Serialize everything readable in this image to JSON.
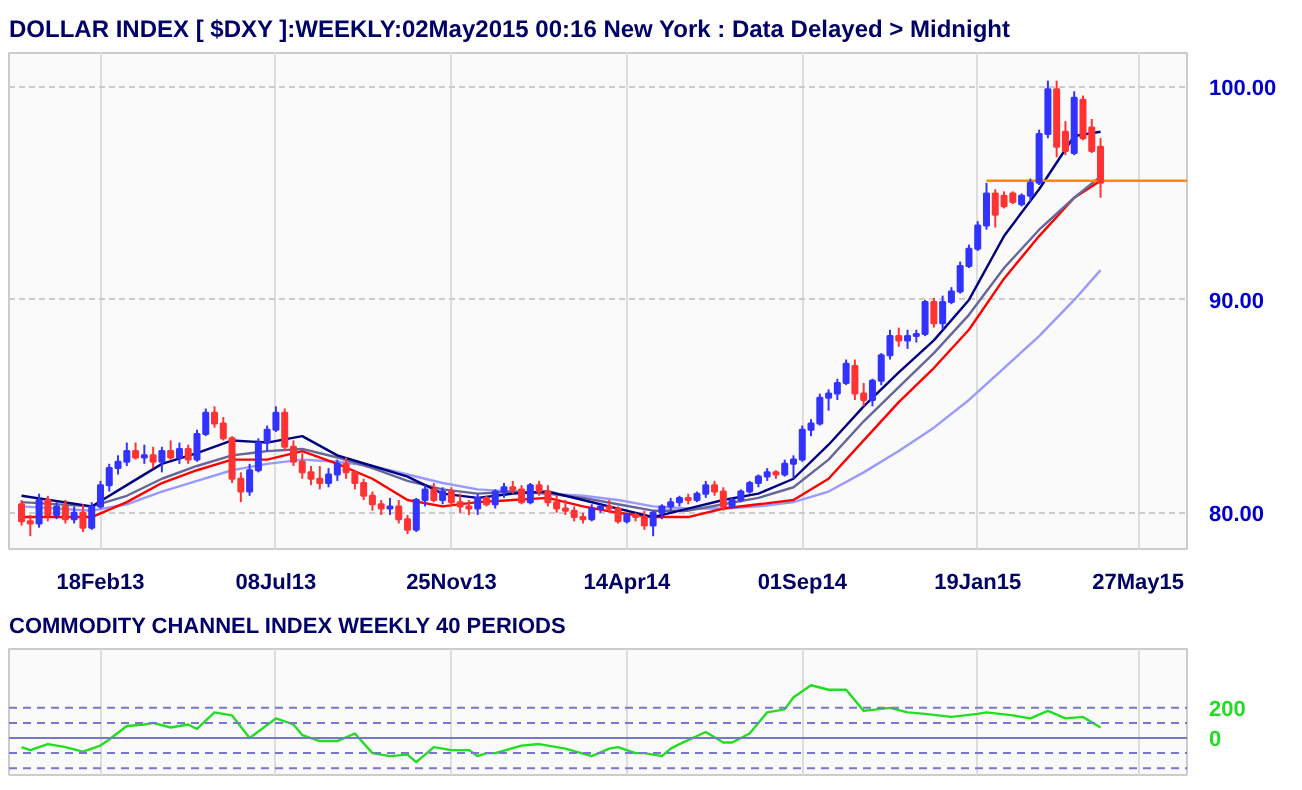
{
  "chart_data": [
    {
      "type": "candlestick",
      "title": "DOLLAR INDEX [ $DXY ]:WEEKLY:02May2015 00:16 New York : Data Delayed > Midnight",
      "x": [
        "2012-12-17",
        "2012-12-24",
        "2012-12-31",
        "2013-01-07",
        "2013-01-14",
        "2013-01-21",
        "2013-01-28",
        "2013-02-04",
        "2013-02-11",
        "2013-02-18",
        "2013-02-25",
        "2013-03-04",
        "2013-03-11",
        "2013-03-18",
        "2013-03-25",
        "2013-04-01",
        "2013-04-08",
        "2013-04-15",
        "2013-04-22",
        "2013-04-29",
        "2013-05-06",
        "2013-05-13",
        "2013-05-20",
        "2013-05-27",
        "2013-06-03",
        "2013-06-10",
        "2013-06-17",
        "2013-06-24",
        "2013-07-01",
        "2013-07-08",
        "2013-07-15",
        "2013-07-22",
        "2013-07-29",
        "2013-08-05",
        "2013-08-12",
        "2013-08-19",
        "2013-08-26",
        "2013-09-02",
        "2013-09-09",
        "2013-09-16",
        "2013-09-23",
        "2013-09-30",
        "2013-10-07",
        "2013-10-14",
        "2013-10-21",
        "2013-10-28",
        "2013-11-04",
        "2013-11-11",
        "2013-11-18",
        "2013-11-25",
        "2013-12-02",
        "2013-12-09",
        "2013-12-16",
        "2013-12-23",
        "2013-12-30",
        "2014-01-06",
        "2014-01-13",
        "2014-01-20",
        "2014-01-27",
        "2014-02-03",
        "2014-02-10",
        "2014-02-17",
        "2014-02-24",
        "2014-03-03",
        "2014-03-10",
        "2014-03-17",
        "2014-03-24",
        "2014-03-31",
        "2014-04-07",
        "2014-04-14",
        "2014-04-21",
        "2014-04-28",
        "2014-05-05",
        "2014-05-12",
        "2014-05-19",
        "2014-05-26",
        "2014-06-02",
        "2014-06-09",
        "2014-06-16",
        "2014-06-23",
        "2014-06-30",
        "2014-07-07",
        "2014-07-14",
        "2014-07-21",
        "2014-07-28",
        "2014-08-04",
        "2014-08-11",
        "2014-08-18",
        "2014-08-25",
        "2014-09-01",
        "2014-09-08",
        "2014-09-15",
        "2014-09-22",
        "2014-09-29",
        "2014-10-06",
        "2014-10-13",
        "2014-10-20",
        "2014-10-27",
        "2014-11-03",
        "2014-11-10",
        "2014-11-17",
        "2014-11-24",
        "2014-12-01",
        "2014-12-08",
        "2014-12-15",
        "2014-12-22",
        "2014-12-29",
        "2015-01-05",
        "2015-01-12",
        "2015-01-19",
        "2015-01-26",
        "2015-02-02",
        "2015-02-09",
        "2015-02-16",
        "2015-02-23",
        "2015-03-02",
        "2015-03-09",
        "2015-03-16",
        "2015-03-23",
        "2015-03-30",
        "2015-04-06",
        "2015-04-13",
        "2015-04-20",
        "2015-04-27"
      ],
      "ohlc": [
        [
          80.4,
          80.6,
          79.4,
          79.6
        ],
        [
          79.6,
          79.9,
          78.9,
          79.5
        ],
        [
          79.5,
          80.9,
          79.3,
          80.6
        ],
        [
          80.6,
          80.8,
          79.6,
          79.9
        ],
        [
          79.9,
          80.5,
          79.7,
          80.3
        ],
        [
          80.3,
          80.6,
          79.5,
          79.7
        ],
        [
          79.7,
          80.3,
          79.5,
          80.0
        ],
        [
          80.0,
          80.4,
          79.1,
          79.3
        ],
        [
          79.3,
          80.5,
          79.2,
          80.3
        ],
        [
          80.3,
          81.5,
          80.2,
          81.3
        ],
        [
          81.3,
          82.3,
          81.0,
          82.1
        ],
        [
          82.1,
          82.7,
          81.8,
          82.4
        ],
        [
          82.4,
          83.3,
          82.2,
          82.9
        ],
        [
          82.9,
          83.3,
          82.5,
          82.6
        ],
        [
          82.6,
          83.2,
          82.3,
          82.7
        ],
        [
          82.7,
          83.1,
          82.1,
          82.4
        ],
        [
          82.4,
          83.1,
          81.9,
          82.9
        ],
        [
          82.9,
          83.4,
          82.5,
          82.6
        ],
        [
          82.6,
          83.3,
          82.3,
          83.0
        ],
        [
          83.0,
          83.2,
          82.3,
          82.5
        ],
        [
          82.5,
          83.9,
          82.4,
          83.7
        ],
        [
          83.7,
          84.9,
          83.6,
          84.7
        ],
        [
          84.7,
          85.0,
          84.0,
          84.2
        ],
        [
          84.2,
          84.5,
          83.4,
          83.5
        ],
        [
          83.5,
          83.6,
          81.4,
          81.6
        ],
        [
          81.6,
          81.9,
          80.5,
          81.0
        ],
        [
          81.0,
          82.3,
          80.8,
          82.0
        ],
        [
          82.0,
          83.5,
          81.9,
          83.3
        ],
        [
          83.3,
          84.1,
          82.9,
          83.9
        ],
        [
          83.9,
          85.0,
          83.8,
          84.7
        ],
        [
          84.7,
          84.9,
          82.9,
          83.1
        ],
        [
          83.1,
          83.4,
          82.2,
          82.4
        ],
        [
          82.4,
          82.8,
          81.6,
          81.9
        ],
        [
          81.9,
          82.2,
          81.3,
          81.6
        ],
        [
          81.6,
          82.2,
          81.1,
          81.4
        ],
        [
          81.4,
          82.1,
          81.2,
          81.8
        ],
        [
          81.8,
          82.5,
          81.5,
          82.3
        ],
        [
          82.3,
          82.6,
          81.6,
          81.9
        ],
        [
          81.9,
          82.0,
          81.1,
          81.4
        ],
        [
          81.4,
          81.6,
          80.6,
          80.8
        ],
        [
          80.8,
          81.0,
          80.1,
          80.4
        ],
        [
          80.4,
          80.6,
          79.9,
          80.2
        ],
        [
          80.2,
          80.7,
          79.9,
          80.3
        ],
        [
          80.3,
          80.6,
          79.5,
          79.7
        ],
        [
          79.7,
          79.9,
          79.0,
          79.2
        ],
        [
          79.2,
          80.7,
          79.1,
          80.6
        ],
        [
          80.6,
          81.3,
          80.3,
          81.1
        ],
        [
          81.1,
          81.4,
          80.5,
          80.6
        ],
        [
          80.6,
          81.2,
          80.4,
          81.0
        ],
        [
          81.0,
          81.2,
          80.3,
          80.5
        ],
        [
          80.5,
          80.9,
          80.0,
          80.3
        ],
        [
          80.3,
          80.6,
          79.9,
          80.2
        ],
        [
          80.2,
          80.9,
          79.9,
          80.7
        ],
        [
          80.7,
          80.8,
          80.3,
          80.4
        ],
        [
          80.4,
          81.1,
          80.2,
          81.0
        ],
        [
          81.0,
          81.4,
          80.7,
          81.2
        ],
        [
          81.2,
          81.5,
          80.9,
          81.1
        ],
        [
          81.1,
          81.3,
          80.4,
          80.5
        ],
        [
          80.5,
          81.4,
          80.4,
          81.3
        ],
        [
          81.3,
          81.5,
          80.8,
          81.0
        ],
        [
          81.0,
          81.3,
          80.3,
          80.5
        ],
        [
          80.5,
          80.8,
          80.0,
          80.2
        ],
        [
          80.2,
          80.6,
          79.9,
          80.1
        ],
        [
          80.1,
          80.3,
          79.6,
          79.8
        ],
        [
          79.8,
          80.0,
          79.5,
          79.7
        ],
        [
          79.7,
          80.4,
          79.6,
          80.2
        ],
        [
          80.2,
          80.4,
          80.0,
          80.3
        ],
        [
          80.3,
          80.6,
          80.0,
          80.2
        ],
        [
          80.2,
          80.3,
          79.5,
          79.6
        ],
        [
          79.6,
          80.0,
          79.5,
          79.9
        ],
        [
          79.9,
          80.0,
          79.6,
          79.8
        ],
        [
          79.8,
          80.1,
          79.2,
          79.4
        ],
        [
          79.4,
          80.1,
          78.9,
          80.0
        ],
        [
          80.0,
          80.4,
          79.7,
          80.3
        ],
        [
          80.3,
          80.7,
          80.1,
          80.5
        ],
        [
          80.5,
          80.8,
          80.3,
          80.7
        ],
        [
          80.7,
          80.9,
          80.4,
          80.6
        ],
        [
          80.6,
          81.0,
          80.5,
          80.9
        ],
        [
          80.9,
          81.5,
          80.7,
          81.3
        ],
        [
          81.3,
          81.5,
          80.8,
          81.0
        ],
        [
          81.0,
          81.2,
          80.1,
          80.3
        ],
        [
          80.3,
          80.7,
          80.2,
          80.6
        ],
        [
          80.6,
          81.1,
          80.5,
          81.0
        ],
        [
          81.0,
          81.5,
          80.9,
          81.4
        ],
        [
          81.4,
          81.8,
          81.2,
          81.7
        ],
        [
          81.7,
          82.1,
          81.5,
          81.9
        ],
        [
          81.9,
          82.0,
          81.6,
          81.8
        ],
        [
          81.8,
          82.5,
          81.7,
          82.3
        ],
        [
          82.3,
          82.7,
          81.6,
          82.5
        ],
        [
          82.5,
          84.1,
          82.4,
          83.9
        ],
        [
          83.9,
          84.4,
          83.6,
          84.2
        ],
        [
          84.2,
          85.6,
          84.1,
          85.4
        ],
        [
          85.4,
          85.8,
          84.8,
          85.6
        ],
        [
          85.6,
          86.3,
          85.3,
          86.1
        ],
        [
          86.1,
          87.2,
          86.0,
          87.0
        ],
        [
          86.9,
          87.2,
          85.3,
          85.6
        ],
        [
          85.6,
          86.1,
          85.0,
          85.3
        ],
        [
          85.3,
          86.3,
          85.0,
          86.2
        ],
        [
          86.2,
          87.5,
          86.0,
          87.4
        ],
        [
          87.4,
          88.6,
          87.2,
          88.3
        ],
        [
          88.3,
          88.7,
          87.8,
          88.1
        ],
        [
          88.1,
          88.6,
          87.7,
          88.3
        ],
        [
          88.3,
          88.6,
          88.0,
          88.4
        ],
        [
          88.4,
          90.0,
          88.3,
          89.9
        ],
        [
          89.9,
          90.1,
          88.7,
          88.9
        ],
        [
          88.9,
          90.2,
          88.6,
          89.9
        ],
        [
          89.9,
          90.6,
          89.8,
          90.4
        ],
        [
          90.4,
          91.8,
          90.3,
          91.6
        ],
        [
          91.6,
          92.6,
          91.5,
          92.4
        ],
        [
          92.4,
          93.7,
          92.3,
          93.5
        ],
        [
          93.5,
          95.5,
          93.3,
          95.0
        ],
        [
          95.0,
          95.2,
          93.4,
          94.0
        ],
        [
          94.9,
          95.1,
          94.3,
          94.4
        ],
        [
          95.0,
          95.1,
          94.5,
          94.6
        ],
        [
          94.5,
          95.0,
          94.4,
          94.9
        ],
        [
          94.9,
          95.7,
          94.6,
          95.5
        ],
        [
          95.5,
          98.0,
          95.4,
          97.8
        ],
        [
          97.8,
          100.3,
          97.6,
          99.9
        ],
        [
          99.9,
          100.3,
          96.7,
          97.2
        ],
        [
          97.9,
          98.4,
          96.8,
          97.0
        ],
        [
          96.9,
          99.8,
          96.8,
          99.5
        ],
        [
          99.4,
          99.6,
          97.5,
          97.6
        ],
        [
          98.1,
          98.5,
          96.9,
          97.0
        ],
        [
          97.2,
          97.6,
          94.8,
          95.5
        ]
      ],
      "colors": [
        "#ff3333",
        "#ff3333",
        "#3333ff",
        "#ff3333",
        "#3333ff",
        "#ff3333",
        "#3333ff",
        "#ff3333",
        "#3333ff",
        "#3333ff",
        "#3333ff",
        "#3333ff",
        "#3333ff",
        "#ff3333",
        "#3333ff",
        "#ff3333",
        "#3333ff",
        "#ff3333",
        "#3333ff",
        "#ff3333",
        "#3333ff",
        "#3333ff",
        "#ff3333",
        "#ff3333",
        "#ff3333",
        "#ff3333",
        "#3333ff",
        "#3333ff",
        "#3333ff",
        "#3333ff",
        "#ff3333",
        "#ff3333",
        "#ff3333",
        "#ff3333",
        "#ff3333",
        "#3333ff",
        "#3333ff",
        "#ff3333",
        "#ff3333",
        "#ff3333",
        "#ff3333",
        "#ff3333",
        "#3333ff",
        "#ff3333",
        "#ff3333",
        "#3333ff",
        "#3333ff",
        "#ff3333",
        "#3333ff",
        "#ff3333",
        "#ff3333",
        "#ff3333",
        "#3333ff",
        "#ff3333",
        "#3333ff",
        "#3333ff",
        "#ff3333",
        "#ff3333",
        "#3333ff",
        "#ff3333",
        "#ff3333",
        "#ff3333",
        "#ff3333",
        "#ff3333",
        "#ff3333",
        "#3333ff",
        "#3333ff",
        "#ff3333",
        "#ff3333",
        "#3333ff",
        "#ff3333",
        "#ff3333",
        "#3333ff",
        "#3333ff",
        "#3333ff",
        "#3333ff",
        "#ff3333",
        "#3333ff",
        "#3333ff",
        "#ff3333",
        "#ff3333",
        "#3333ff",
        "#3333ff",
        "#3333ff",
        "#3333ff",
        "#3333ff",
        "#ff3333",
        "#3333ff",
        "#3333ff",
        "#3333ff",
        "#3333ff",
        "#3333ff",
        "#3333ff",
        "#3333ff",
        "#3333ff",
        "#ff3333",
        "#ff3333",
        "#3333ff",
        "#3333ff",
        "#3333ff",
        "#ff3333",
        "#3333ff",
        "#3333ff",
        "#3333ff",
        "#ff3333",
        "#3333ff",
        "#3333ff",
        "#3333ff",
        "#3333ff",
        "#3333ff",
        "#3333ff",
        "#ff3333",
        "#ff3333",
        "#ff3333",
        "#3333ff",
        "#3333ff",
        "#3333ff",
        "#3333ff",
        "#ff3333",
        "#ff3333",
        "#3333ff",
        "#ff3333",
        "#ff3333",
        "#ff3333"
      ],
      "series": [
        {
          "type": "line",
          "color": "#9999ff",
          "x": [
            "2012-12-17",
            "2013-02-11",
            "2013-03-11",
            "2013-04-08",
            "2013-05-06",
            "2013-06-03",
            "2013-07-01",
            "2013-07-29",
            "2013-08-26",
            "2013-09-23",
            "2013-10-21",
            "2013-11-18",
            "2013-12-16",
            "2014-01-13",
            "2014-02-10",
            "2014-03-10",
            "2014-04-07",
            "2014-05-05",
            "2014-06-02",
            "2014-06-30",
            "2014-07-28",
            "2014-08-25",
            "2014-09-22",
            "2014-10-20",
            "2014-11-17",
            "2014-12-15",
            "2015-01-12",
            "2015-02-09",
            "2015-03-09",
            "2015-04-06",
            "2015-04-27"
          ],
          "values": [
            80.3,
            80.1,
            80.4,
            81.0,
            81.5,
            82.0,
            82.3,
            82.5,
            82.4,
            82.2,
            81.8,
            81.4,
            81.1,
            81.0,
            80.9,
            80.8,
            80.6,
            80.3,
            80.2,
            80.2,
            80.3,
            80.5,
            81.0,
            81.9,
            82.9,
            84.0,
            85.3,
            86.8,
            88.3,
            90.0,
            91.4
          ]
        },
        {
          "type": "line",
          "color": "#ff0000",
          "x": [
            "2012-12-17",
            "2013-02-11",
            "2013-03-11",
            "2013-04-08",
            "2013-05-06",
            "2013-06-03",
            "2013-07-01",
            "2013-07-29",
            "2013-08-26",
            "2013-09-23",
            "2013-10-21",
            "2013-11-18",
            "2013-12-16",
            "2014-01-13",
            "2014-02-10",
            "2014-03-10",
            "2014-04-07",
            "2014-05-05",
            "2014-06-02",
            "2014-06-30",
            "2014-07-28",
            "2014-08-25",
            "2014-09-22",
            "2014-10-20",
            "2014-11-17",
            "2014-12-15",
            "2015-01-12",
            "2015-02-09",
            "2015-03-09",
            "2015-04-06",
            "2015-04-27"
          ],
          "values": [
            79.8,
            79.8,
            80.5,
            81.4,
            82.0,
            82.5,
            82.5,
            82.9,
            82.3,
            81.6,
            80.6,
            80.3,
            80.5,
            80.6,
            80.7,
            80.3,
            80.0,
            79.8,
            79.8,
            80.2,
            80.4,
            80.6,
            81.6,
            83.4,
            85.2,
            86.8,
            88.6,
            91.0,
            93.0,
            94.8,
            95.6
          ]
        },
        {
          "type": "line",
          "color": "#666699",
          "x": [
            "2012-12-17",
            "2013-02-11",
            "2013-03-11",
            "2013-04-08",
            "2013-05-06",
            "2013-06-03",
            "2013-07-01",
            "2013-07-29",
            "2013-08-26",
            "2013-09-23",
            "2013-10-21",
            "2013-11-18",
            "2013-12-16",
            "2014-01-13",
            "2014-02-10",
            "2014-03-10",
            "2014-04-07",
            "2014-05-05",
            "2014-06-02",
            "2014-06-30",
            "2014-07-28",
            "2014-08-25",
            "2014-09-22",
            "2014-10-20",
            "2014-11-17",
            "2014-12-15",
            "2015-01-12",
            "2015-02-09",
            "2015-03-09",
            "2015-04-06",
            "2015-04-27"
          ],
          "values": [
            80.5,
            80.3,
            80.8,
            81.6,
            82.2,
            82.7,
            82.9,
            83.0,
            82.6,
            82.1,
            81.5,
            81.1,
            80.9,
            81.0,
            80.9,
            80.7,
            80.4,
            80.1,
            80.1,
            80.4,
            80.7,
            81.2,
            82.5,
            84.3,
            85.9,
            87.5,
            89.3,
            91.5,
            93.3,
            94.8,
            95.8
          ]
        },
        {
          "type": "line",
          "color": "#000080",
          "x": [
            "2012-12-17",
            "2013-02-11",
            "2013-03-11",
            "2013-04-08",
            "2013-05-06",
            "2013-06-03",
            "2013-07-01",
            "2013-07-29",
            "2013-08-26",
            "2013-09-23",
            "2013-10-21",
            "2013-11-18",
            "2013-12-16",
            "2014-01-13",
            "2014-02-10",
            "2014-03-10",
            "2014-04-07",
            "2014-05-05",
            "2014-06-02",
            "2014-06-30",
            "2014-07-28",
            "2014-08-25",
            "2014-09-22",
            "2014-10-20",
            "2014-11-17",
            "2014-12-15",
            "2015-01-12",
            "2015-02-09",
            "2015-03-09",
            "2015-04-06",
            "2015-04-27"
          ],
          "values": [
            80.8,
            80.3,
            81.3,
            82.3,
            82.8,
            83.4,
            83.3,
            83.6,
            82.7,
            82.2,
            81.7,
            80.9,
            80.7,
            80.9,
            81.0,
            80.6,
            80.2,
            79.8,
            80.2,
            80.6,
            80.9,
            81.6,
            83.2,
            85.0,
            86.6,
            88.1,
            90.0,
            93.0,
            95.2,
            97.7,
            97.9
          ]
        },
        {
          "type": "line",
          "color": "#ff8c00",
          "x": [
            "2015-01-26",
            "2015-07-05"
          ],
          "values": [
            95.6,
            95.6
          ]
        }
      ],
      "xlim": [
        "2012-12-07",
        "2015-07-05"
      ],
      "ylim": [
        78.3,
        101.6
      ],
      "xticks": [
        {
          "value": "2013-02-18",
          "label": "18Feb13"
        },
        {
          "value": "2013-07-08",
          "label": "08Jul13"
        },
        {
          "value": "2013-11-25",
          "label": "25Nov13"
        },
        {
          "value": "2014-04-14",
          "label": "14Apr14"
        },
        {
          "value": "2014-09-01",
          "label": "01Sep14"
        },
        {
          "value": "2015-01-19",
          "label": "19Jan15"
        },
        {
          "value": "2015-05-27",
          "label": "27May15"
        }
      ],
      "yticks": [
        {
          "value": 80,
          "label": "80.00"
        },
        {
          "value": 90,
          "label": "90.00"
        },
        {
          "value": 100,
          "label": "100.00"
        }
      ],
      "grid": true
    },
    {
      "type": "line",
      "title": "COMMODITY CHANNEL INDEX WEEKLY 40 PERIODS",
      "series": [
        {
          "color": "#22dd22",
          "x": [
            "2012-12-17",
            "2012-12-24",
            "2013-01-07",
            "2013-01-21",
            "2013-02-04",
            "2013-02-18",
            "2013-02-25",
            "2013-03-11",
            "2013-03-25",
            "2013-04-01",
            "2013-04-15",
            "2013-04-29",
            "2013-05-06",
            "2013-05-20",
            "2013-06-03",
            "2013-06-17",
            "2013-07-08",
            "2013-07-22",
            "2013-07-29",
            "2013-08-12",
            "2013-08-26",
            "2013-09-09",
            "2013-09-23",
            "2013-10-07",
            "2013-10-21",
            "2013-10-28",
            "2013-11-11",
            "2013-11-25",
            "2013-12-09",
            "2013-12-16",
            "2013-12-23",
            "2013-12-30",
            "2014-01-20",
            "2014-02-03",
            "2014-02-24",
            "2014-03-17",
            "2014-03-31",
            "2014-04-07",
            "2014-04-21",
            "2014-04-28",
            "2014-05-12",
            "2014-05-19",
            "2014-05-26",
            "2014-06-16",
            "2014-06-30",
            "2014-07-07",
            "2014-07-21",
            "2014-08-04",
            "2014-08-18",
            "2014-08-25",
            "2014-09-08",
            "2014-09-22",
            "2014-10-06",
            "2014-10-20",
            "2014-11-10",
            "2014-11-24",
            "2014-12-08",
            "2014-12-29",
            "2015-01-19",
            "2015-01-26",
            "2015-02-16",
            "2015-03-02",
            "2015-03-16",
            "2015-03-30",
            "2015-04-13",
            "2015-04-27"
          ],
          "values": [
            -60,
            -80,
            -40,
            -60,
            -90,
            -50,
            -10,
            80,
            90,
            100,
            70,
            90,
            60,
            170,
            150,
            0,
            130,
            90,
            20,
            -20,
            -20,
            30,
            -100,
            -120,
            -110,
            -160,
            -60,
            -80,
            -80,
            -120,
            -100,
            -100,
            -50,
            -40,
            -70,
            -120,
            -70,
            -60,
            -100,
            -100,
            -120,
            -70,
            -40,
            40,
            -30,
            -30,
            30,
            170,
            190,
            270,
            350,
            320,
            320,
            180,
            200,
            170,
            160,
            140,
            160,
            170,
            150,
            130,
            180,
            130,
            140,
            70
          ]
        }
      ],
      "xlim": [
        "2012-12-07",
        "2015-07-05"
      ],
      "ylim": [
        -245,
        590
      ],
      "xticks": [
        "2013-02-18",
        "2013-07-08",
        "2013-11-25",
        "2014-04-14",
        "2014-09-01",
        "2015-01-19",
        "2015-05-27"
      ],
      "yticks": [
        {
          "value": -200,
          "label": null
        },
        {
          "value": -100,
          "label": null
        },
        0,
        {
          "value": 100,
          "label": null
        },
        200
      ],
      "tick_labels": "y",
      "grid": "x",
      "ref_lines": [
        {
          "axis": "y",
          "value": 200,
          "color": "#7777cc",
          "line_style": "dashed"
        },
        {
          "axis": "y",
          "value": 100,
          "color": "#7777cc",
          "line_style": "dashed"
        },
        {
          "axis": "y",
          "value": 0,
          "color": "#7777cc",
          "line_style": "solid"
        },
        {
          "axis": "y",
          "value": -100,
          "color": "#7777cc",
          "line_style": "dashed"
        },
        {
          "axis": "y",
          "value": -200,
          "color": "#7777cc",
          "line_style": "dashed"
        }
      ]
    }
  ]
}
